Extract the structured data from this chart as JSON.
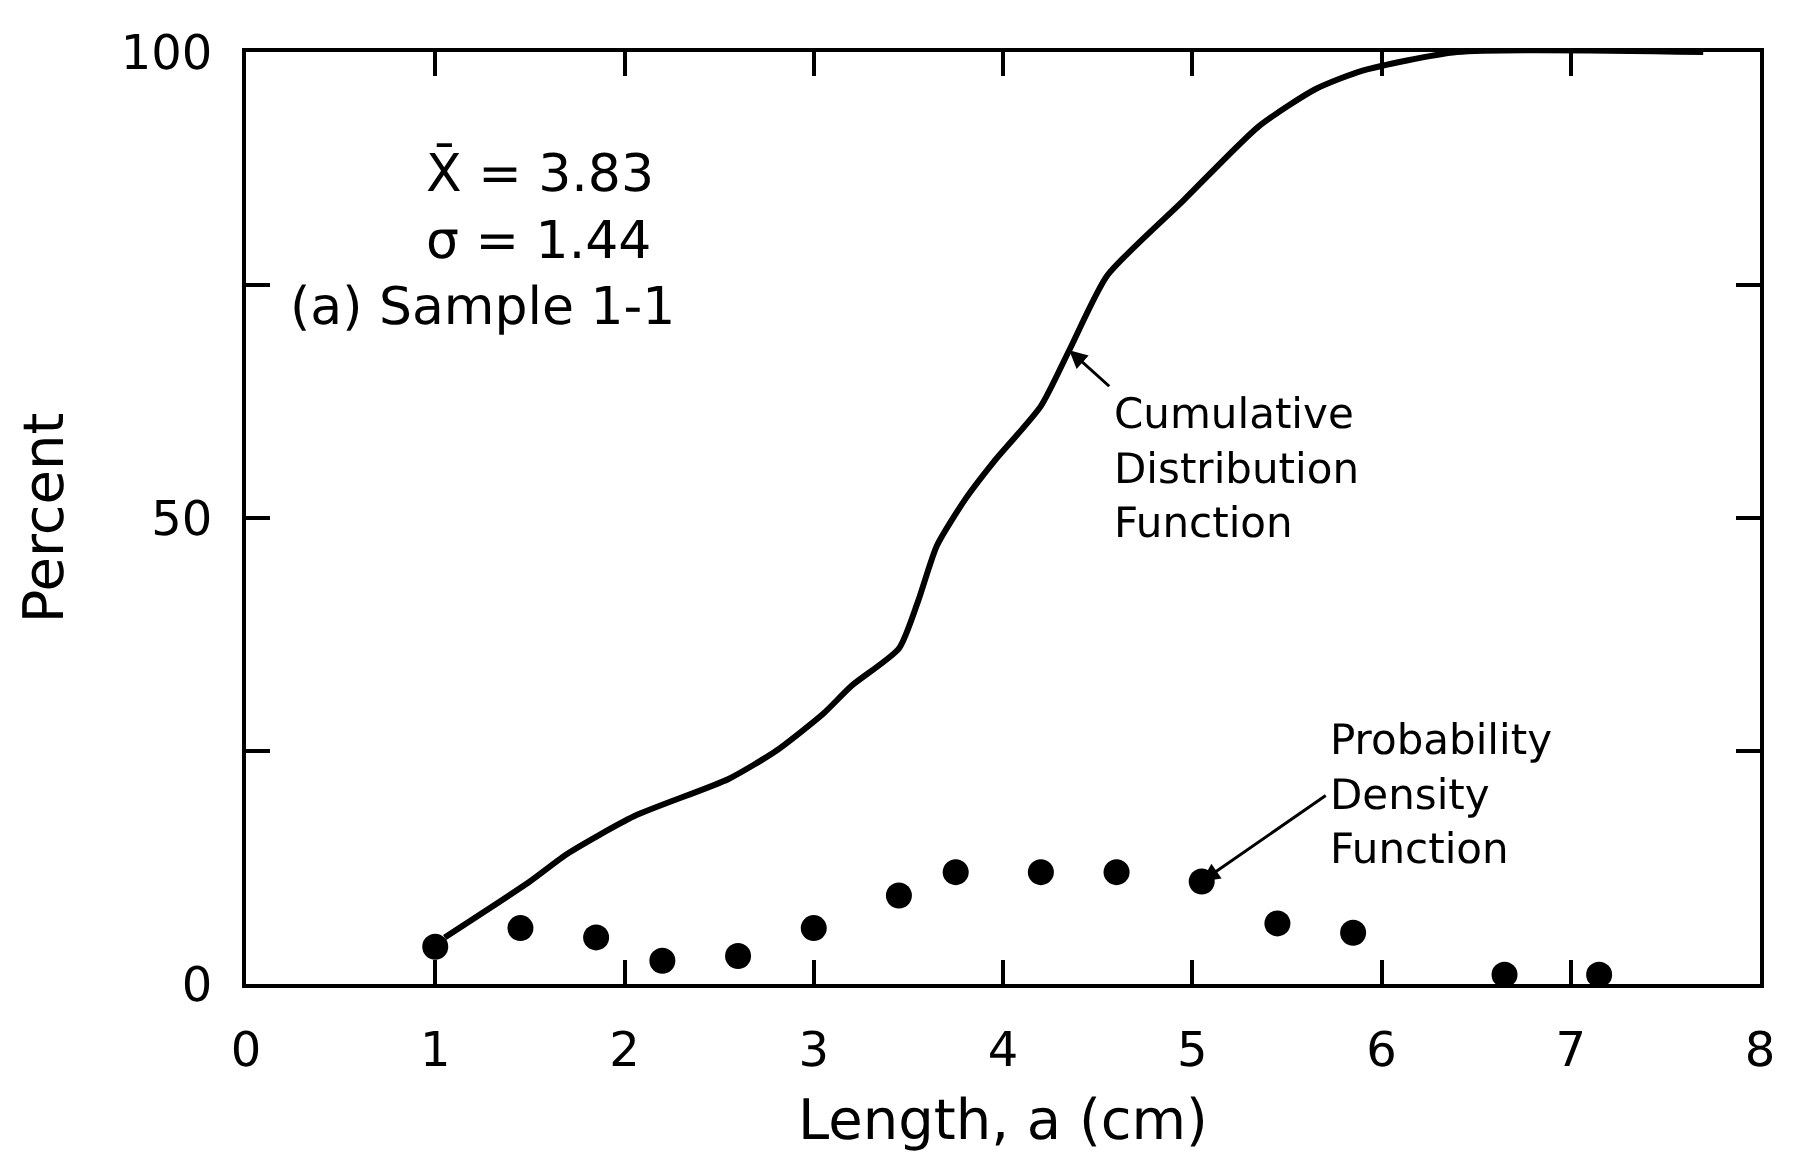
{
  "chart_data": {
    "type": "line",
    "xlabel": "Length, a (cm)",
    "ylabel": "Percent",
    "xlim": [
      0,
      8
    ],
    "ylim": [
      0,
      100
    ],
    "xticks": [
      0,
      1,
      2,
      3,
      4,
      5,
      6,
      7,
      8
    ],
    "yticks": [
      0,
      {
        "value": 25,
        "label": null
      },
      50,
      {
        "value": 75,
        "label": null
      },
      100
    ],
    "series": [
      {
        "color": "#000000",
        "line_style": "solid",
        "x": [
          1.05,
          1.5,
          1.7,
          2.05,
          2.55,
          2.8,
          3.05,
          3.2,
          3.45,
          3.55,
          3.65,
          3.8,
          3.95,
          4.2,
          4.35,
          4.55,
          4.95,
          5.35,
          5.65,
          5.9,
          6.4,
          7.7
        ],
        "values": [
          5,
          11,
          14,
          18,
          22,
          25,
          29,
          32,
          36,
          41,
          47,
          52,
          56,
          62,
          68,
          76,
          84,
          92,
          96,
          98,
          100,
          100
        ]
      },
      {
        "type": "scatter",
        "color": "#000000",
        "marker": "circle",
        "x": [
          1.0,
          1.45,
          1.85,
          2.2,
          2.6,
          3.0,
          3.45,
          3.75,
          4.2,
          4.6,
          5.05,
          5.45,
          5.85,
          6.65,
          7.15
        ],
        "values": [
          4,
          6,
          5,
          2.5,
          3,
          6,
          9.5,
          12,
          12,
          12,
          11,
          6.5,
          5.5,
          1,
          1
        ]
      }
    ],
    "annotations": [
      "X̄ = 3.83",
      "σ = 1.44",
      "(a) Sample 1-1",
      {
        "text": "Cumulative\nDistribution\nFunction",
        "x": 4.35,
        "y": 68
      },
      {
        "text": "Probability\nDensity\nFunction",
        "x": 5.05,
        "y": 11
      }
    ]
  }
}
